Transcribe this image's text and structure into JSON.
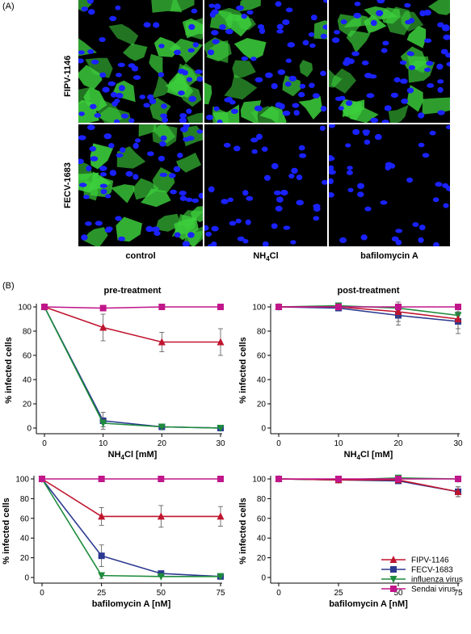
{
  "figure": {
    "panel_a_label": "(A)",
    "panel_b_label": "(B)",
    "row_labels": [
      "FIPV-1146",
      "FECV-1683"
    ],
    "column_labels": [
      "control",
      "NH4Cl",
      "bafilomycin A"
    ]
  },
  "microscopy": [
    {
      "row": "FIPV-1146",
      "column": "control",
      "green_density": 0.95
    },
    {
      "row": "FIPV-1146",
      "column": "NH4Cl",
      "green_density": 0.7
    },
    {
      "row": "FIPV-1146",
      "column": "bafilomycin A",
      "green_density": 0.75
    },
    {
      "row": "FECV-1683",
      "column": "control",
      "green_density": 0.9
    },
    {
      "row": "FECV-1683",
      "column": "NH4Cl",
      "green_density": 0.0
    },
    {
      "row": "FECV-1683",
      "column": "bafilomycin A",
      "green_density": 0.0
    }
  ],
  "colors": {
    "FIPV-1146": "#c0152f",
    "FECV-1683": "#2b3990",
    "influenza virus": "#1e8c3c",
    "Sendai virus": "#c0168a",
    "nuclei": "#1a22ff",
    "cytoplasm": "#3ccf3c"
  },
  "chart_data": [
    {
      "type": "line",
      "title": "pre-treatment",
      "xlabel": "NH4Cl [mM]",
      "ylabel": "% infected cells",
      "x": [
        0,
        10,
        20,
        30
      ],
      "xlim": [
        0,
        30
      ],
      "ylim": [
        0,
        100
      ],
      "xticks": [
        "0",
        "10",
        "20",
        "30"
      ],
      "yticks": [
        "0",
        "20",
        "40",
        "60",
        "80",
        "100"
      ],
      "series": [
        {
          "name": "FIPV-1146",
          "values": [
            100,
            83,
            71,
            71
          ],
          "errors": [
            0,
            11,
            8,
            11
          ]
        },
        {
          "name": "FECV-1683",
          "values": [
            100,
            6,
            1,
            0
          ],
          "errors": [
            0,
            7,
            0,
            0
          ]
        },
        {
          "name": "influenza virus",
          "values": [
            100,
            4,
            1,
            0
          ],
          "errors": [
            0,
            3,
            0,
            0
          ]
        },
        {
          "name": "Sendai virus",
          "values": [
            100,
            99,
            100,
            100
          ],
          "errors": [
            0,
            0,
            0,
            0
          ]
        }
      ]
    },
    {
      "type": "line",
      "title": "post-treatment",
      "xlabel": "NH4Cl [mM]",
      "ylabel": "% infected cells",
      "x": [
        0,
        10,
        20,
        30
      ],
      "xlim": [
        0,
        30
      ],
      "ylim": [
        0,
        100
      ],
      "xticks": [
        "0",
        "10",
        "20",
        "30"
      ],
      "yticks": [
        "0",
        "20",
        "40",
        "60",
        "80",
        "100"
      ],
      "series": [
        {
          "name": "FIPV-1146",
          "values": [
            100,
            100,
            96,
            90
          ],
          "errors": [
            0,
            1,
            8,
            12
          ]
        },
        {
          "name": "FECV-1683",
          "values": [
            100,
            99,
            93,
            88
          ],
          "errors": [
            0,
            2,
            8,
            6
          ]
        },
        {
          "name": "influenza virus",
          "values": [
            100,
            101,
            99,
            93
          ],
          "errors": [
            0,
            1,
            2,
            3
          ]
        },
        {
          "name": "Sendai virus",
          "values": [
            100,
            100,
            100,
            100
          ],
          "errors": [
            0,
            0,
            0,
            0
          ]
        }
      ]
    },
    {
      "type": "line",
      "title": "",
      "xlabel": "bafilomycin A [nM]",
      "ylabel": "% infected cells",
      "x": [
        0,
        25,
        50,
        75
      ],
      "xlim": [
        0,
        75
      ],
      "ylim": [
        0,
        100
      ],
      "xticks": [
        "0",
        "25",
        "50",
        "75"
      ],
      "yticks": [
        "0",
        "20",
        "40",
        "60",
        "80",
        "100"
      ],
      "series": [
        {
          "name": "FIPV-1146",
          "values": [
            100,
            62,
            62,
            62
          ],
          "errors": [
            0,
            9,
            11,
            10
          ]
        },
        {
          "name": "FECV-1683",
          "values": [
            100,
            22,
            4,
            1
          ],
          "errors": [
            0,
            11,
            0,
            0
          ]
        },
        {
          "name": "influenza virus",
          "values": [
            100,
            2,
            1,
            1
          ],
          "errors": [
            0,
            3,
            0,
            0
          ]
        },
        {
          "name": "Sendai virus",
          "values": [
            100,
            100,
            100,
            100
          ],
          "errors": [
            0,
            0,
            0,
            0
          ]
        }
      ]
    },
    {
      "type": "line",
      "title": "",
      "xlabel": "bafilomycin A [nM]",
      "ylabel": "% infected cells",
      "x": [
        0,
        25,
        50,
        75
      ],
      "xlim": [
        0,
        75
      ],
      "ylim": [
        0,
        100
      ],
      "xticks": [
        "0",
        "25",
        "50",
        "75"
      ],
      "yticks": [
        "0",
        "20",
        "40",
        "60",
        "80",
        "100"
      ],
      "legend_position": "bottom-right",
      "legend": [
        "FIPV-1146",
        "FECV-1683",
        "influenza virus",
        "Sendai virus"
      ],
      "series": [
        {
          "name": "FIPV-1146",
          "values": [
            100,
            99,
            99,
            87
          ],
          "errors": [
            0,
            2,
            2,
            5
          ]
        },
        {
          "name": "FECV-1683",
          "values": [
            100,
            99,
            98,
            87
          ],
          "errors": [
            0,
            2,
            2,
            5
          ]
        },
        {
          "name": "influenza virus",
          "values": [
            100,
            99,
            101,
            100
          ],
          "errors": [
            0,
            2,
            2,
            2
          ]
        },
        {
          "name": "Sendai virus",
          "values": [
            100,
            100,
            100,
            100
          ],
          "errors": [
            0,
            0,
            0,
            3
          ]
        }
      ]
    }
  ]
}
